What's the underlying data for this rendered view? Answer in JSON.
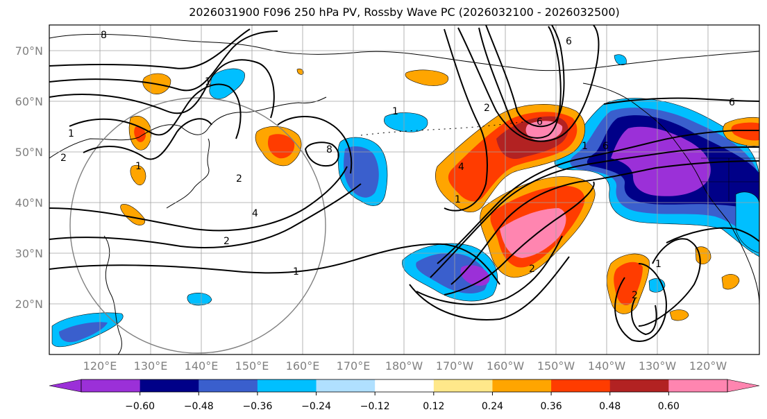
{
  "title": "2026031900 F096 250 hPa PV, Rossby Wave PC (2026032100 - 2026032500)",
  "lat_labels": [
    "70°N",
    "60°N",
    "50°N",
    "40°N",
    "30°N",
    "20°N"
  ],
  "lat_values": [
    70,
    60,
    50,
    40,
    30,
    20
  ],
  "lon_labels": [
    "120°E",
    "130°E",
    "140°E",
    "150°E",
    "160°E",
    "170°E",
    "180°W",
    "170°W",
    "160°W",
    "150°W",
    "140°W",
    "130°W",
    "120°W"
  ],
  "lon_values": [
    120,
    130,
    140,
    150,
    160,
    170,
    180,
    190,
    200,
    210,
    220,
    230,
    240
  ],
  "map_extent": {
    "lon_min": 110,
    "lon_max": 250,
    "lat_min": 10,
    "lat_max": 75
  },
  "colorbar": {
    "ticks": [
      "−0.60",
      "−0.48",
      "−0.36",
      "−0.24",
      "−0.12",
      "0.12",
      "0.24",
      "0.36",
      "0.48",
      "0.60"
    ],
    "colors": [
      "#9b30d8",
      "#000088",
      "#3a5fcd",
      "#00bfff",
      "#b0e0ff",
      "#ffffff",
      "#ffe88a",
      "#ffa500",
      "#ff3c00",
      "#b22222",
      "#ff85b0"
    ],
    "under_color": "#9b30d8",
    "over_color": "#ff85b0"
  },
  "contour_labels": [
    "1",
    "1",
    "2",
    "4",
    "2",
    "1",
    "8",
    "2",
    "6",
    "6",
    "2",
    "4",
    "6",
    "1",
    "2",
    "1",
    "2",
    "8",
    "1",
    "6",
    "1",
    "1"
  ],
  "colors": {
    "purple": "#9b30d8",
    "navy": "#000088",
    "blue": "#3a5fcd",
    "sky": "#00bfff",
    "light_sky": "#b0e0ff",
    "yellow": "#ffe88a",
    "orange": "#ffa500",
    "red_orange": "#ff3c00",
    "dark_red": "#b22222",
    "pink": "#ff85b0"
  }
}
